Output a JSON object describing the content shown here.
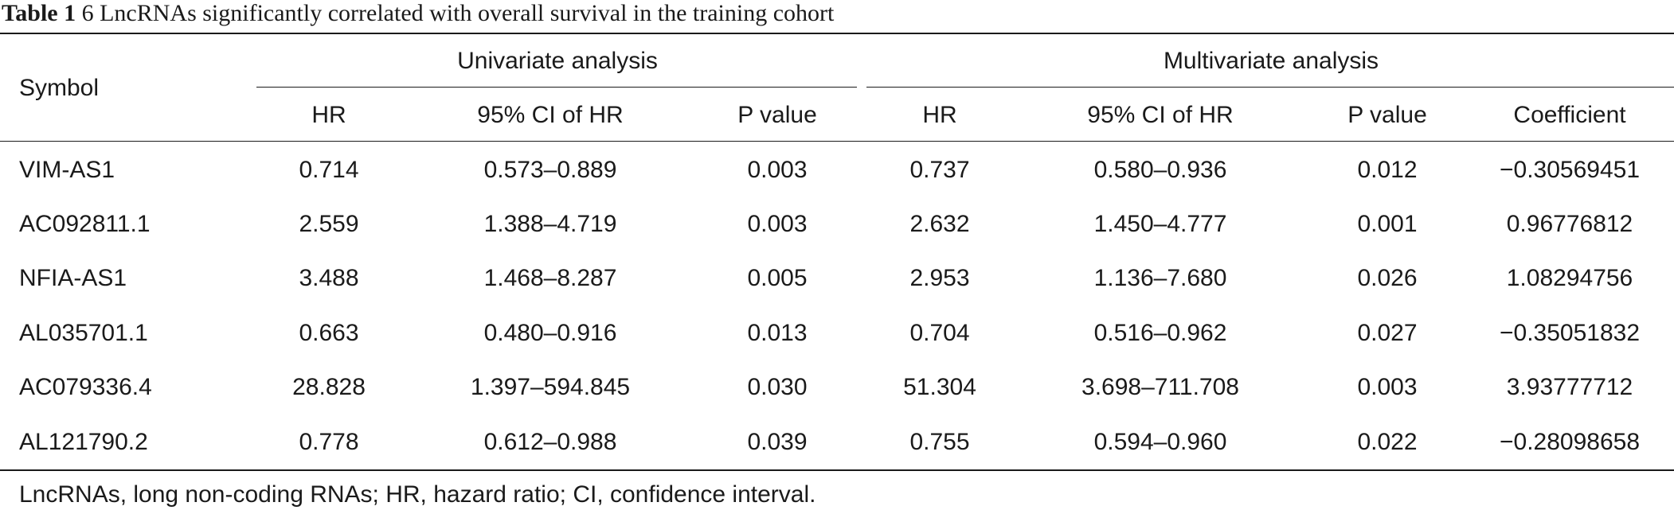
{
  "caption": {
    "label": "Table 1",
    "text": "6 LncRNAs significantly correlated with overall survival in the training cohort"
  },
  "header": {
    "symbol": "Symbol",
    "groups": [
      "Univariate analysis",
      "Multivariate analysis"
    ],
    "columns": [
      "HR",
      "95% CI of HR",
      "P value",
      "HR",
      "95% CI of HR",
      "P value",
      "Coefficient"
    ]
  },
  "rows": [
    [
      "VIM-AS1",
      "0.714",
      "0.573–0.889",
      "0.003",
      "0.737",
      "0.580–0.936",
      "0.012",
      "−0.30569451"
    ],
    [
      "AC092811.1",
      "2.559",
      "1.388–4.719",
      "0.003",
      "2.632",
      "1.450–4.777",
      "0.001",
      "0.96776812"
    ],
    [
      "NFIA-AS1",
      "3.488",
      "1.468–8.287",
      "0.005",
      "2.953",
      "1.136–7.680",
      "0.026",
      "1.08294756"
    ],
    [
      "AL035701.1",
      "0.663",
      "0.480–0.916",
      "0.013",
      "0.704",
      "0.516–0.962",
      "0.027",
      "−0.35051832"
    ],
    [
      "AC079336.4",
      "28.828",
      "1.397–594.845",
      "0.030",
      "51.304",
      "3.698–711.708",
      "0.003",
      "3.93777712"
    ],
    [
      "AL121790.2",
      "0.778",
      "0.612–0.988",
      "0.039",
      "0.755",
      "0.594–0.960",
      "0.022",
      "−0.28098658"
    ]
  ],
  "footnote": "LncRNAs, long non-coding RNAs; HR, hazard ratio; CI, confidence interval."
}
